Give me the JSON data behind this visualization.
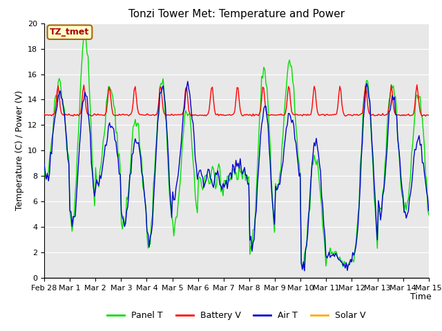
{
  "title": "Tonzi Tower Met: Temperature and Power",
  "xlabel": "Time",
  "ylabel": "Temperature (C) / Power (V)",
  "ylim": [
    0,
    20
  ],
  "xlim": [
    0,
    15
  ],
  "figsize": [
    6.4,
    4.8
  ],
  "dpi": 100,
  "bg_color": "#e8e8e8",
  "fig_color": "#ffffff",
  "panel_color": "#00dd00",
  "battery_color": "#ff0000",
  "air_color": "#0000cc",
  "solar_color": "#ffaa00",
  "annotation_text": "TZ_tmet",
  "annotation_bg": "#ffffcc",
  "annotation_border": "#aa6600",
  "annotation_text_color": "#aa0000",
  "legend_labels": [
    "Panel T",
    "Battery V",
    "Air T",
    "Solar V"
  ],
  "x_tick_labels": [
    "Feb 28",
    "Mar 1",
    "Mar 2",
    "Mar 3",
    "Mar 4",
    "Mar 5",
    "Mar 6",
    "Mar 7",
    "Mar 8",
    "Mar 9",
    "Mar 10",
    "Mar 11",
    "Mar 12",
    "Mar 13",
    "Mar 14",
    "Mar 15"
  ],
  "yticks": [
    0,
    2,
    4,
    6,
    8,
    10,
    12,
    14,
    16,
    18,
    20
  ],
  "title_fontsize": 11,
  "tick_fontsize": 8,
  "ylabel_fontsize": 9,
  "xlabel_fontsize": 9,
  "legend_fontsize": 9
}
